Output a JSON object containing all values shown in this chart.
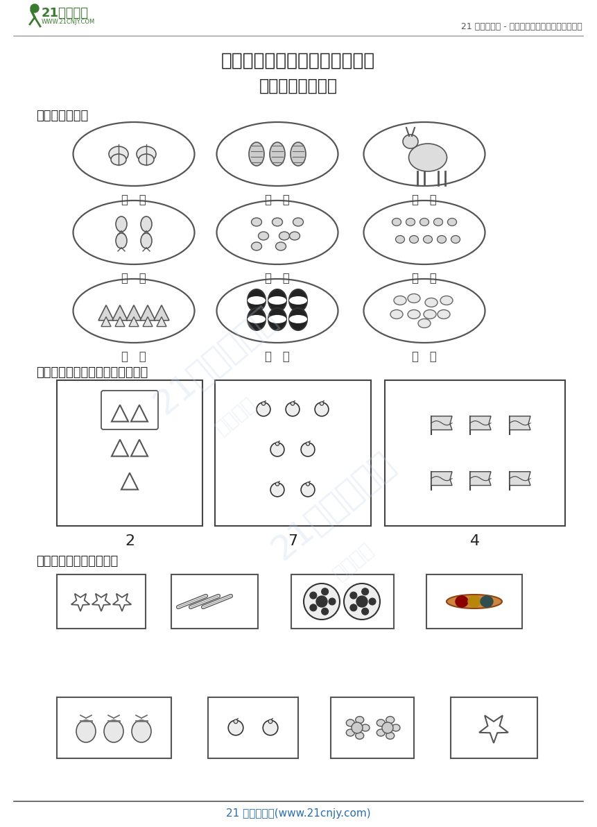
{
  "bg_color": "#ffffff",
  "logo_green": "#3a7a2f",
  "logo_text_main": "21世纪教育",
  "logo_text_sub": "WWW.21CNJY.COM",
  "header_right": "21 世纪教育网 - 中小学教育资源及组卷应用平台",
  "header_right_color": "#555555",
  "title1": "人教版一年级数学上册第一单元",
  "title2": "《准备课》测试卷",
  "sec1": "一、看图写数。",
  "sec2": "二、照样子圈一圈（看数圈图）。",
  "sec3": "三、把同样多的连起来。",
  "bracket": "（   ）",
  "lbl2": "2",
  "lbl7": "7",
  "lbl4": "4",
  "footer": "21 世纪教育网(www.21cnjy.com)",
  "footer_color": "#2a6ead",
  "dark": "#222222",
  "mid": "#555555",
  "oval_ec": "#444444",
  "box_ec": "#444444"
}
